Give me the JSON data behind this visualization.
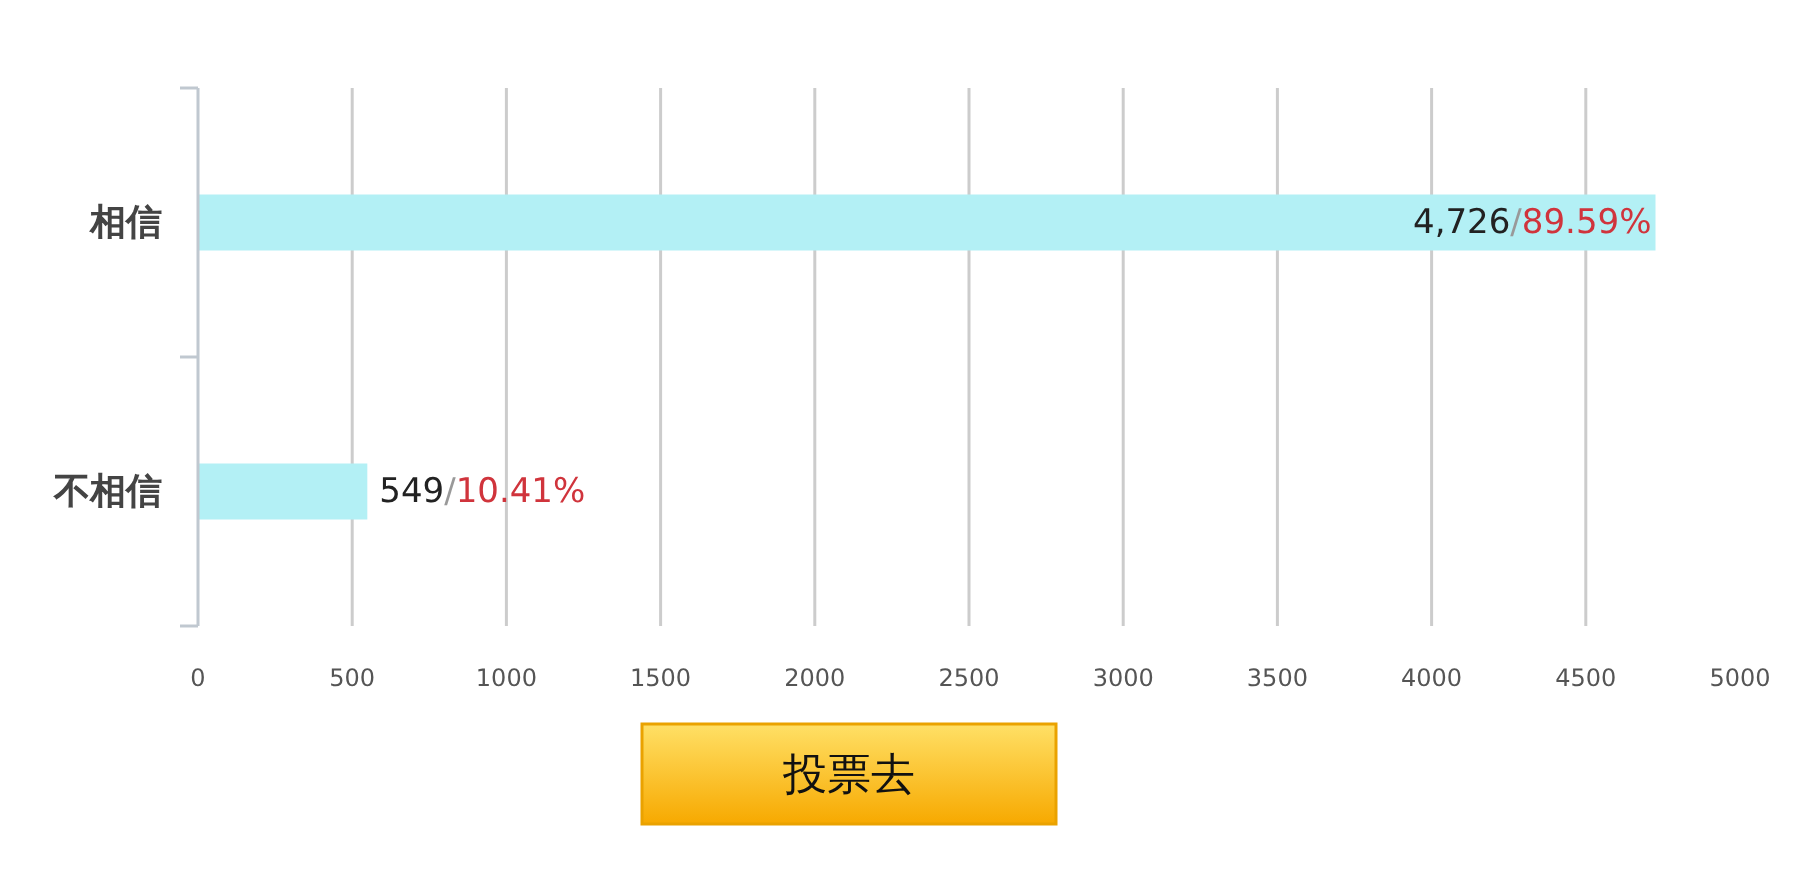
{
  "chart_data": {
    "type": "bar",
    "orientation": "horizontal",
    "categories": [
      "相信",
      "不相信"
    ],
    "values": [
      4726,
      549
    ],
    "color": "#b3f0f5",
    "value_labels": [
      "4,726/89.59%",
      "549/10.41%"
    ],
    "xlim": [
      0,
      5000
    ],
    "xticks": [
      0,
      500,
      1000,
      1500,
      2000,
      2500,
      3000,
      3500,
      4000,
      4500,
      5000
    ],
    "grid": "x",
    "annotations": [
      "投票去"
    ]
  }
}
